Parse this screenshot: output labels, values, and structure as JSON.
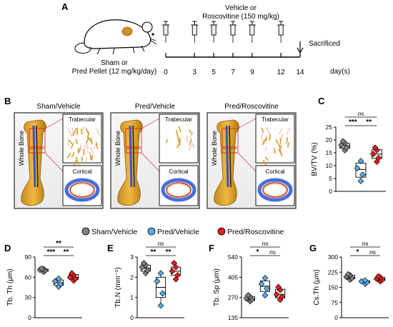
{
  "panel_letters": [
    "A",
    "B",
    "C",
    "D",
    "E",
    "F",
    "G"
  ],
  "timeline": {
    "treatment_line1": "Vehicle or",
    "treatment_line2": "Roscovitine (150 mg/kg)",
    "pellet_line1": "Sham or",
    "pellet_line2": "Pred Pellet (12 mg/kg/day)",
    "end_label": "Sacrificed",
    "day_unit": "day(s)",
    "days": [
      "0",
      "3",
      "5",
      "7",
      "9",
      "12",
      "14"
    ],
    "injection_days": [
      0,
      3,
      5,
      7,
      9,
      12
    ]
  },
  "microct": {
    "groups": [
      "Sham/Vehicle",
      "Pred/Vehicle",
      "Pred/Roscovitine"
    ],
    "whole_bone_label": "Whole Bone",
    "trabecular_label": "Trabecular",
    "cortical_label": "Cortical"
  },
  "legend": [
    {
      "name": "Sham/Vehicle",
      "color": "#808080"
    },
    {
      "name": "Pred/Vehicle",
      "color": "#5aa9e6"
    },
    {
      "name": "Pred/Roscovitine",
      "color": "#e02020"
    }
  ],
  "chart_data": [
    {
      "panel": "C",
      "type": "box",
      "ylabel": "BV/TV (%)",
      "ylim": [
        0,
        25
      ],
      "yticks": [
        "0",
        "5",
        "10",
        "15",
        "20",
        "25"
      ],
      "categories": [
        "Sham/Vehicle",
        "Pred/Vehicle",
        "Pred/Roscovitine"
      ],
      "series": [
        {
          "name": "Sham/Vehicle",
          "min": 16,
          "q1": 16.8,
          "median": 17.8,
          "q3": 18.6,
          "max": 19.5,
          "points": [
            16,
            17,
            18,
            18.8,
            19.5
          ]
        },
        {
          "name": "Pred/Vehicle",
          "min": 4,
          "q1": 5.5,
          "median": 8.5,
          "q3": 11,
          "max": 12,
          "points": [
            4,
            6.5,
            9,
            11.8
          ]
        },
        {
          "name": "Pred/Roscovitine",
          "min": 11.5,
          "q1": 12.8,
          "median": 14.5,
          "q3": 16.2,
          "max": 17,
          "points": [
            11.5,
            13,
            14.5,
            16,
            17
          ]
        }
      ],
      "significance": [
        {
          "from": 0,
          "to": 1,
          "label": "***"
        },
        {
          "from": 1,
          "to": 2,
          "label": "**"
        },
        {
          "from": 0,
          "to": 2,
          "label": "ns"
        }
      ]
    },
    {
      "panel": "D",
      "type": "box",
      "ylabel": "Tb. Th (μm)",
      "ylim": [
        0,
        90
      ],
      "yticks": [
        "0",
        "30",
        "60",
        "90"
      ],
      "categories": [
        "Sham/Vehicle",
        "Pred/Vehicle",
        "Pred/Roscovitine"
      ],
      "series": [
        {
          "name": "Sham/Vehicle",
          "min": 68,
          "q1": 69,
          "median": 70,
          "q3": 72,
          "max": 73,
          "points": [
            68,
            70,
            71,
            72,
            73
          ]
        },
        {
          "name": "Pred/Vehicle",
          "min": 46,
          "q1": 48,
          "median": 52,
          "q3": 56,
          "max": 58,
          "points": [
            46,
            50,
            54,
            58
          ]
        },
        {
          "name": "Pred/Roscovitine",
          "min": 55,
          "q1": 57,
          "median": 60,
          "q3": 64,
          "max": 66,
          "points": [
            55,
            58,
            60,
            63,
            66
          ]
        }
      ],
      "significance": [
        {
          "from": 0,
          "to": 1,
          "label": "***"
        },
        {
          "from": 1,
          "to": 2,
          "label": "**"
        },
        {
          "from": 0,
          "to": 2,
          "label": "**"
        }
      ]
    },
    {
      "panel": "E",
      "type": "box",
      "ylabel": "Tb.N (mm⁻¹)",
      "ylim": [
        0,
        3
      ],
      "yticks": [
        "0",
        "1",
        "2",
        "3"
      ],
      "categories": [
        "Sham/Vehicle",
        "Pred/Vehicle",
        "Pred/Roscovitine"
      ],
      "series": [
        {
          "name": "Sham/Vehicle",
          "min": 2.2,
          "q1": 2.3,
          "median": 2.45,
          "q3": 2.6,
          "max": 2.7,
          "points": [
            2.2,
            2.35,
            2.5,
            2.6,
            2.7
          ]
        },
        {
          "name": "Pred/Vehicle",
          "min": 0.6,
          "q1": 1.0,
          "median": 1.5,
          "q3": 2.0,
          "max": 2.2,
          "points": [
            0.6,
            1.2,
            1.8,
            2.2
          ]
        },
        {
          "name": "Pred/Roscovitine",
          "min": 1.9,
          "q1": 2.1,
          "median": 2.3,
          "q3": 2.5,
          "max": 2.7,
          "points": [
            1.9,
            2.1,
            2.3,
            2.5,
            2.7
          ]
        }
      ],
      "significance": [
        {
          "from": 0,
          "to": 1,
          "label": "**"
        },
        {
          "from": 1,
          "to": 2,
          "label": "**"
        },
        {
          "from": 0,
          "to": 2,
          "label": "ns"
        }
      ]
    },
    {
      "panel": "F",
      "type": "box",
      "ylabel": "Tb. Sp (μm)",
      "ylim": [
        135,
        540
      ],
      "yticks": [
        "135",
        "270",
        "405",
        "540"
      ],
      "categories": [
        "Sham/Vehicle",
        "Pred/Vehicle",
        "Pred/Roscovitine"
      ],
      "series": [
        {
          "name": "Sham/Vehicle",
          "min": 245,
          "q1": 250,
          "median": 262,
          "q3": 275,
          "max": 285,
          "points": [
            245,
            255,
            265,
            275,
            285
          ]
        },
        {
          "name": "Pred/Vehicle",
          "min": 285,
          "q1": 310,
          "median": 345,
          "q3": 380,
          "max": 400,
          "points": [
            285,
            330,
            360,
            400
          ]
        },
        {
          "name": "Pred/Roscovitine",
          "min": 255,
          "q1": 268,
          "median": 290,
          "q3": 325,
          "max": 340,
          "points": [
            255,
            275,
            290,
            320,
            340
          ]
        }
      ],
      "significance": [
        {
          "from": 0,
          "to": 1,
          "label": "*"
        },
        {
          "from": 1,
          "to": 2,
          "label": "ns"
        },
        {
          "from": 0,
          "to": 2,
          "label": "ns"
        }
      ]
    },
    {
      "panel": "G",
      "type": "box",
      "ylabel": "Cs.Th (μm)",
      "ylim": [
        0,
        300
      ],
      "yticks": [
        "0",
        "75",
        "150",
        "225",
        "300"
      ],
      "categories": [
        "Sham/Vehicle",
        "Pred/Vehicle",
        "Pred/Roscovitine"
      ],
      "series": [
        {
          "name": "Sham/Vehicle",
          "min": 188,
          "q1": 192,
          "median": 200,
          "q3": 210,
          "max": 215,
          "points": [
            188,
            195,
            202,
            210,
            215
          ]
        },
        {
          "name": "Pred/Vehicle",
          "min": 168,
          "q1": 172,
          "median": 178,
          "q3": 182,
          "max": 185,
          "points": [
            168,
            175,
            180,
            185
          ]
        },
        {
          "name": "Pred/Roscovitine",
          "min": 180,
          "q1": 184,
          "median": 192,
          "q3": 200,
          "max": 205,
          "points": [
            180,
            186,
            192,
            200,
            205
          ]
        }
      ],
      "significance": [
        {
          "from": 0,
          "to": 1,
          "label": "*"
        },
        {
          "from": 1,
          "to": 2,
          "label": "ns"
        },
        {
          "from": 0,
          "to": 2,
          "label": "ns"
        }
      ]
    }
  ]
}
